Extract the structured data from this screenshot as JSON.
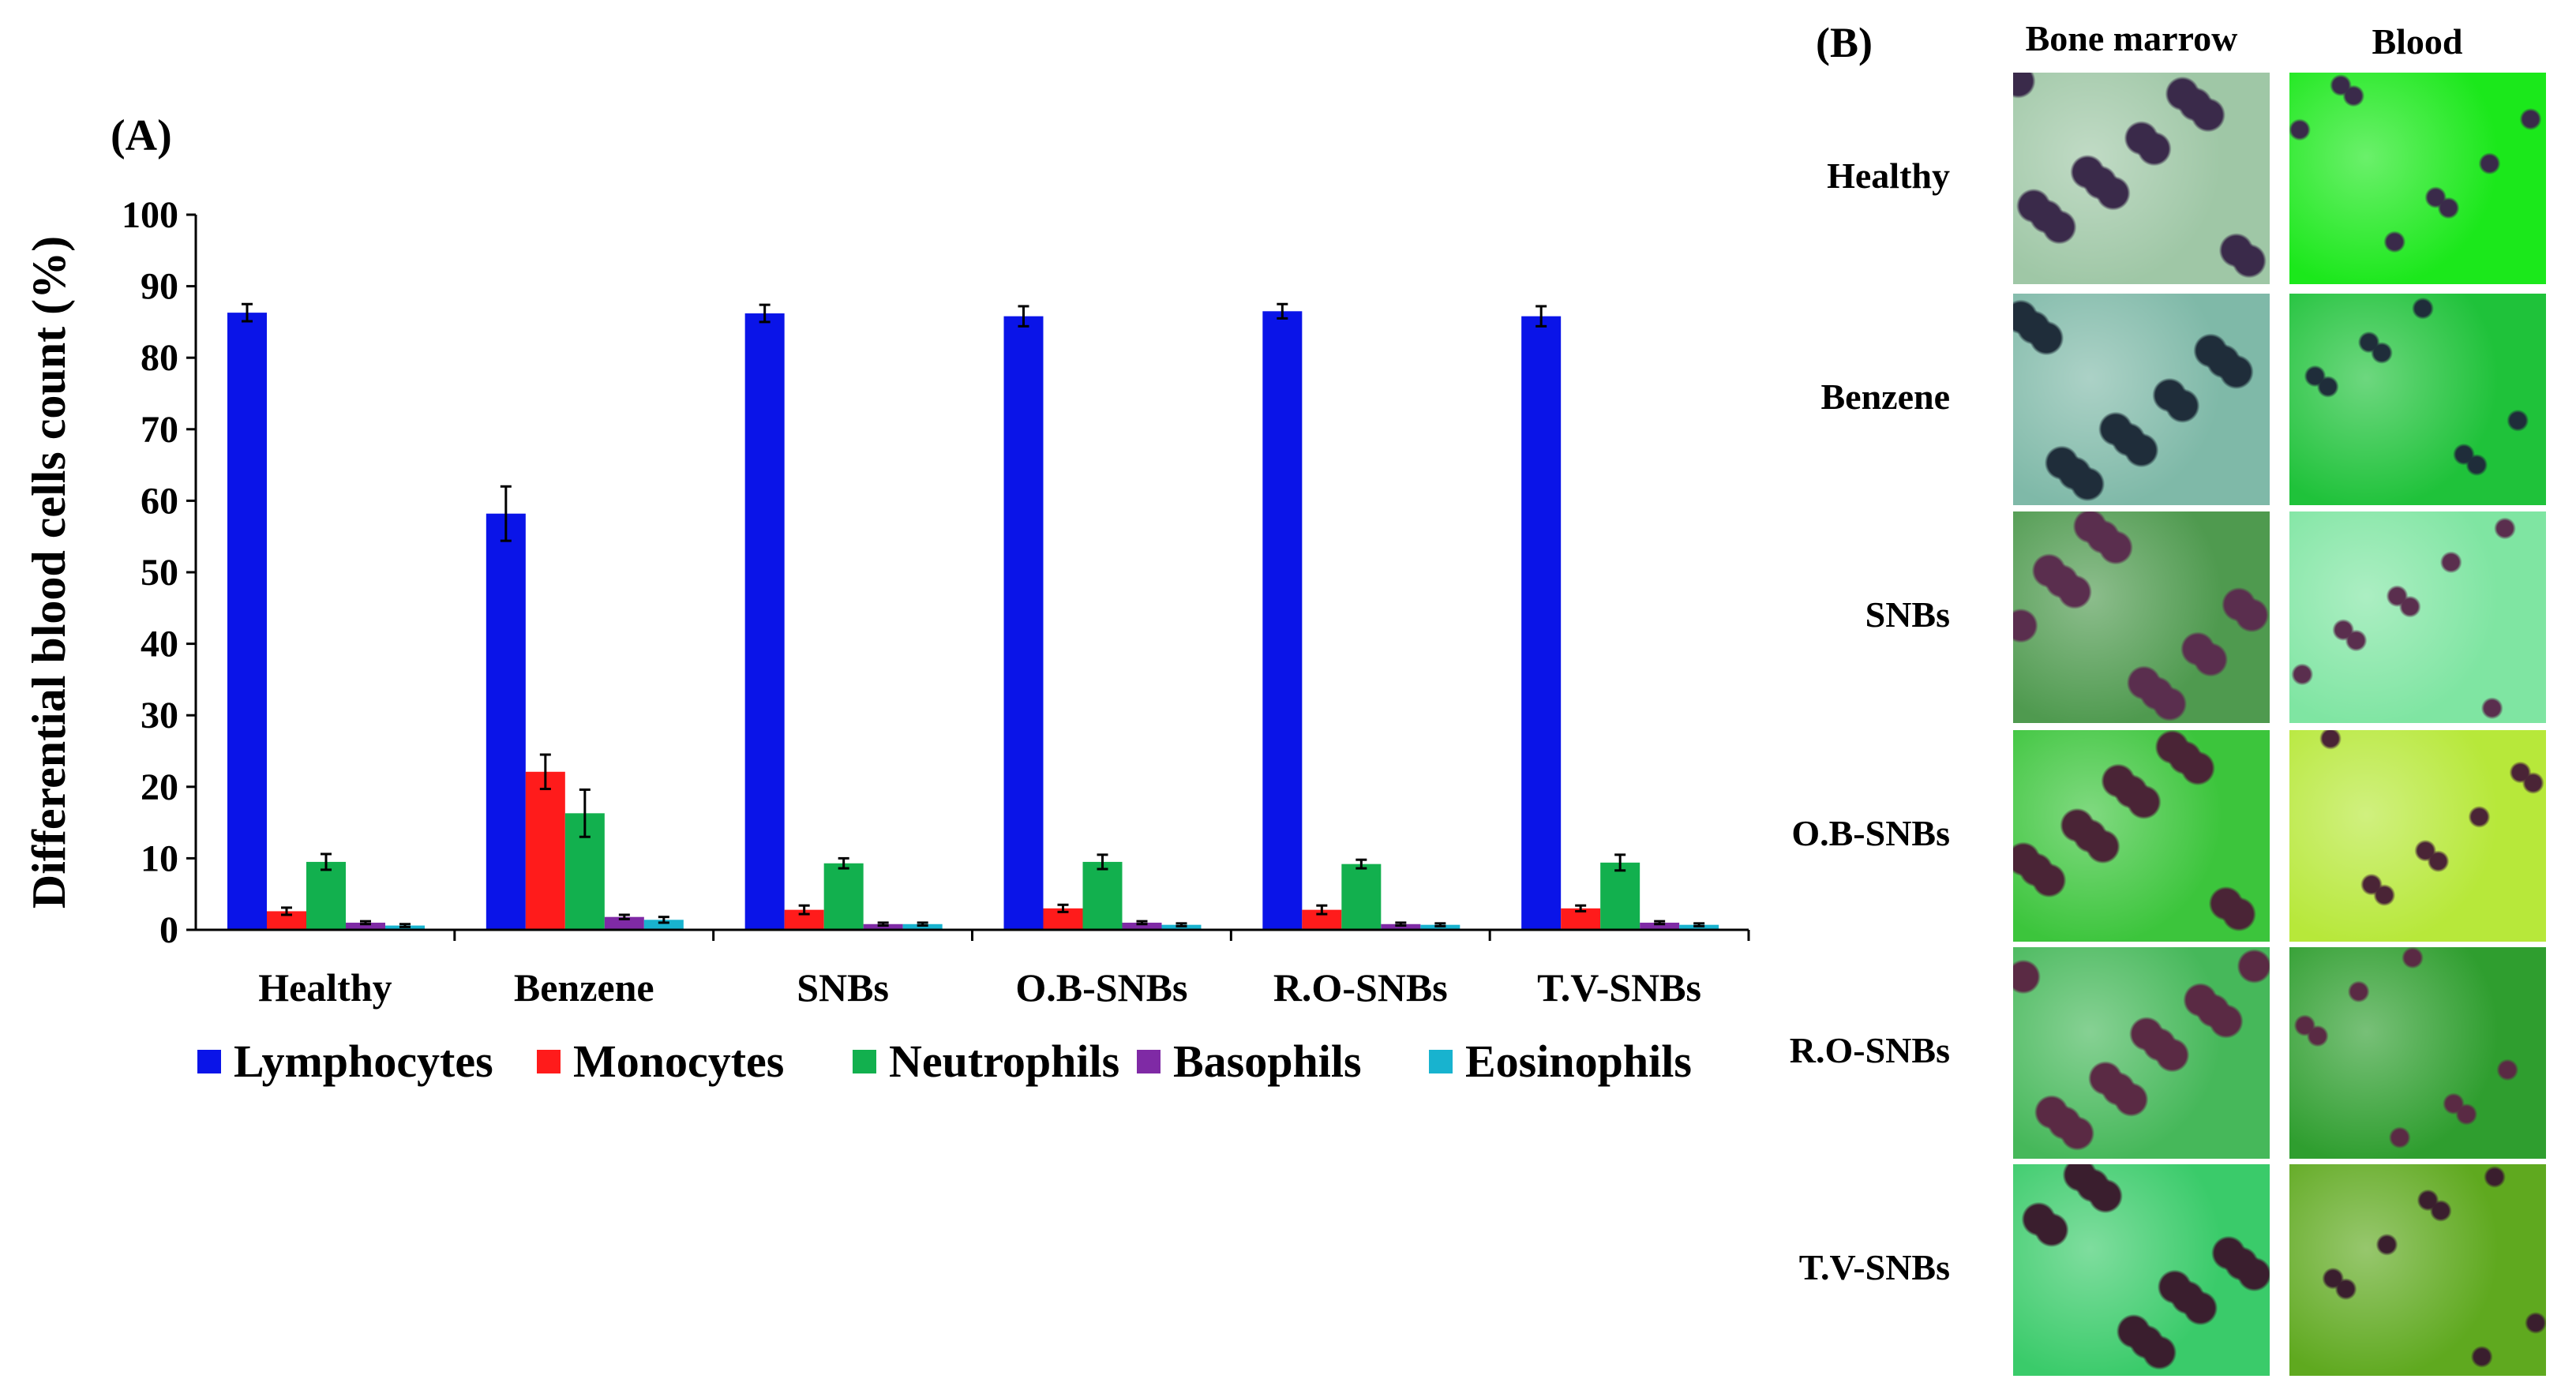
{
  "panel_labels": {
    "a": "(A)",
    "b": "(B)"
  },
  "colors": {
    "lymphocytes": "#0a14e8",
    "monocytes": "#ff1b1b",
    "neutrophils": "#12b04e",
    "basophils": "#7f2aa5",
    "eosinophils": "#18b3cf"
  },
  "chart_data": {
    "type": "bar",
    "title": "",
    "xlabel": "",
    "ylabel": "Differential blood cells count (%)",
    "ylim": [
      0,
      100
    ],
    "yticks": [
      0,
      10,
      20,
      30,
      40,
      50,
      60,
      70,
      80,
      90,
      100
    ],
    "grid": false,
    "legend_position": "bottom",
    "categories": [
      "Healthy",
      "Benzene",
      "SNBs",
      "O.B-SNBs",
      "R.O-SNBs",
      "T.V-SNBs"
    ],
    "series": [
      {
        "name": "Lymphocytes",
        "values": [
          86.3,
          58.2,
          86.2,
          85.8,
          86.5,
          85.8
        ],
        "errors": [
          1.2,
          3.8,
          1.2,
          1.4,
          1.0,
          1.4
        ]
      },
      {
        "name": "Monocytes",
        "values": [
          2.6,
          22.1,
          2.8,
          3.0,
          2.8,
          3.0
        ],
        "errors": [
          0.5,
          2.4,
          0.6,
          0.5,
          0.6,
          0.4
        ]
      },
      {
        "name": "Neutrophils",
        "values": [
          9.5,
          16.3,
          9.3,
          9.5,
          9.2,
          9.4
        ],
        "errors": [
          1.1,
          3.3,
          0.7,
          1.0,
          0.6,
          1.1
        ]
      },
      {
        "name": "Basophils",
        "values": [
          1.0,
          1.8,
          0.8,
          1.0,
          0.8,
          1.0
        ],
        "errors": [
          0.2,
          0.3,
          0.2,
          0.2,
          0.2,
          0.2
        ]
      },
      {
        "name": "Eosinophils",
        "values": [
          0.6,
          1.4,
          0.8,
          0.7,
          0.7,
          0.7
        ],
        "errors": [
          0.2,
          0.4,
          0.2,
          0.2,
          0.2,
          0.2
        ]
      }
    ]
  },
  "microscopy": {
    "column_headers": [
      "Bone marrow",
      "Blood"
    ],
    "rows": [
      "Healthy",
      "Benzene",
      "SNBs",
      "O.B-SNBs",
      "R.O-SNBs",
      "T.V-SNBs"
    ],
    "palettes": [
      [
        "#9fc7a6",
        "#1be81b"
      ],
      [
        "#7fb9a8",
        "#1fc23a"
      ],
      [
        "#4f9a4f",
        "#7fe5a2"
      ],
      [
        "#3cc53c",
        "#b7e83a"
      ],
      [
        "#46b85a",
        "#2f9e2f"
      ],
      [
        "#3acb6a",
        "#5fa91f"
      ]
    ],
    "spot_colors": [
      "#3a2a4a",
      "#1f2d3a",
      "#5a2e4e",
      "#4a2436",
      "#5a2a44",
      "#3a1e2e"
    ]
  }
}
